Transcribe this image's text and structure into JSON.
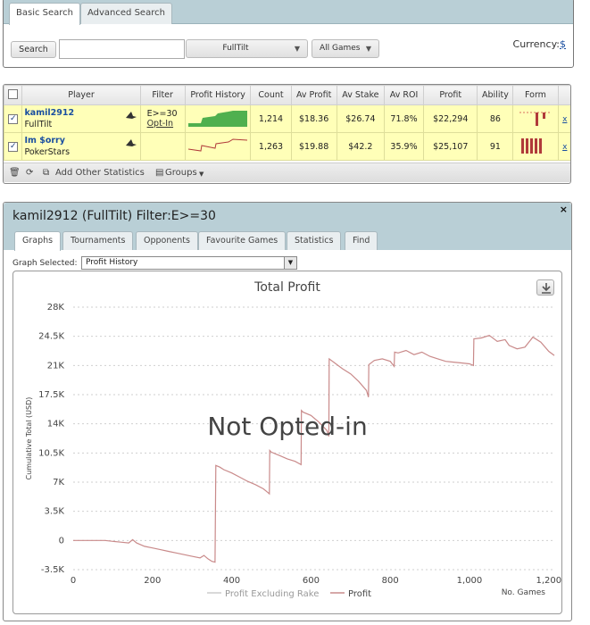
{
  "search": {
    "tabs": [
      "Basic Search",
      "Advanced Search"
    ],
    "search_button": "Search",
    "input_value": "",
    "site_select": "FullTilt",
    "games_select": "All Games",
    "currency_label": "Currency:",
    "currency_symbol": "$"
  },
  "table": {
    "headers": [
      "Player",
      "Filter",
      "Profit History",
      "Count",
      "Av Profit",
      "Av Stake",
      "Av ROI",
      "Profit",
      "Ability",
      "Form"
    ],
    "rows": [
      {
        "name": "kamil2912",
        "site": "FullTilt",
        "filter": "E>=30",
        "filter_link": "Opt-In",
        "count": "1,214",
        "av_profit": "$18.36",
        "av_stake": "$26.74",
        "av_roi": "71.8%",
        "profit": "$22,294",
        "ability": "86",
        "remove": "x"
      },
      {
        "name": "Im $orry",
        "site": "PokerStars",
        "filter": "",
        "filter_link": "",
        "count": "1,263",
        "av_profit": "$19.88",
        "av_stake": "$42.2",
        "av_roi": "35.9%",
        "profit": "$25,107",
        "ability": "91",
        "remove": "x"
      }
    ],
    "footer": {
      "add_stats": "Add Other Statistics",
      "groups": "Groups"
    }
  },
  "detail": {
    "title": "kamil2912 (FullTilt) Filter:E>=30",
    "close": "×",
    "tabs": [
      "Graphs",
      "Tournaments",
      "Opponents",
      "Favourite Games",
      "Statistics",
      "Find"
    ],
    "graph_label": "Graph Selected:",
    "graph_selected": "Profit History"
  },
  "chart_data": {
    "type": "line",
    "title": "Total Profit",
    "overlay_text": "Not Opted-in",
    "xlabel": "No. Games",
    "ylabel": "Cumulative Total (USD)",
    "xlim": [
      0,
      1214
    ],
    "ylim": [
      -3500,
      28000
    ],
    "x_ticks": [
      "0",
      "200",
      "400",
      "600",
      "800",
      "1,000",
      "1,200"
    ],
    "y_ticks": [
      "-3.5K",
      "0",
      "3.5K",
      "7K",
      "10.5K",
      "14K",
      "17.5K",
      "21K",
      "24.5K",
      "28K"
    ],
    "legend": [
      "Profit Excluding Rake",
      "Profit"
    ],
    "colors": {
      "profit": "#c98a8a",
      "excluding_rake": "#cccccc"
    },
    "series": [
      {
        "name": "Profit",
        "x": [
          0,
          20,
          40,
          60,
          80,
          100,
          120,
          140,
          150,
          160,
          180,
          200,
          220,
          240,
          260,
          280,
          300,
          320,
          330,
          340,
          350,
          358,
          360,
          370,
          380,
          400,
          420,
          440,
          460,
          480,
          490,
          495,
          496,
          500,
          520,
          540,
          560,
          575,
          576,
          580,
          600,
          620,
          640,
          645,
          646,
          660,
          680,
          700,
          720,
          740,
          745,
          746,
          760,
          780,
          800,
          810,
          811,
          820,
          840,
          860,
          880,
          900,
          920,
          940,
          960,
          980,
          1000,
          1010,
          1011,
          1030,
          1050,
          1070,
          1090,
          1100,
          1120,
          1140,
          1160,
          1180,
          1200,
          1214
        ],
        "y": [
          0,
          0,
          0,
          0,
          0,
          -100,
          -200,
          -300,
          100,
          -300,
          -700,
          -900,
          -1100,
          -1300,
          -1500,
          -1700,
          -1900,
          -2100,
          -1800,
          -2200,
          -2500,
          -2600,
          9000,
          8800,
          8500,
          8100,
          7600,
          7100,
          6700,
          6200,
          5800,
          5600,
          10800,
          10600,
          10200,
          9800,
          9500,
          9100,
          15600,
          15400,
          15000,
          14200,
          13200,
          12500,
          21800,
          21300,
          20600,
          20000,
          19100,
          18000,
          17200,
          21100,
          21600,
          21800,
          21500,
          20900,
          22600,
          22500,
          22800,
          22300,
          22600,
          22100,
          21800,
          21500,
          21400,
          21300,
          21200,
          21000,
          24200,
          24300,
          24600,
          23900,
          24100,
          23400,
          23000,
          23200,
          24400,
          23800,
          22700,
          22200
        ]
      }
    ]
  }
}
